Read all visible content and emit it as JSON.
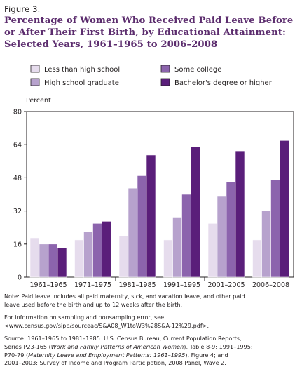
{
  "figure": {
    "label": "Figure 3.",
    "title_lines": [
      "Percentage of Women Who Received Paid Leave Before",
      "or After Their First Birth, by Educational Attainment:",
      "Selected Years, 1961–1965 to 2006–2008"
    ]
  },
  "chart_data": {
    "type": "bar",
    "ylabel": "Percent",
    "ylim": [
      0,
      80
    ],
    "yticks": [
      0,
      16,
      32,
      48,
      64,
      80
    ],
    "grid": false,
    "legend_placement": "top",
    "categories": [
      "1961–1965",
      "1971–1975",
      "1981–1985",
      "1991–1995",
      "2001–2005",
      "2006–2008"
    ],
    "series": [
      {
        "name": "Less than high school",
        "color": "#e6dced",
        "values": [
          19,
          18,
          20,
          18,
          26,
          18
        ]
      },
      {
        "name": "High school graduate",
        "color": "#b7a2cd",
        "values": [
          16,
          22,
          43,
          29,
          39,
          32
        ]
      },
      {
        "name": "Some college",
        "color": "#8c64ad",
        "values": [
          16,
          26,
          49,
          40,
          46,
          47
        ]
      },
      {
        "name": "Bachelor's degree or higher",
        "color": "#5a1e7a",
        "values": [
          14,
          27,
          59,
          63,
          61,
          66
        ]
      }
    ]
  },
  "notes": {
    "note_lines": [
      "Note: Paid leave includes all paid maternity, sick, and vacation leave, and other paid",
      "leave used before the birth and up to 12 weeks after the birth."
    ],
    "info_lines": [
      "For information on sampling and nonsampling error, see",
      "<www.census.gov/sipp/sourceac/S&A08_W1toW3%28S&A-12%29.pdf>."
    ],
    "source": {
      "l1": "Source: 1961–1965 to 1981–1985: U.S. Census Bureau, Current Population Reports,",
      "l2a": "Series P23-165 (",
      "l2b": "Work and Family Patterns of American Women",
      "l2c": "), Table 8-9; 1991–1995:",
      "l3a": "P70-79 (",
      "l3b": "Maternity Leave and Employment Patterns: 1961–1995",
      "l3c": "), Figure 4; and",
      "l4": "2001–2003: Survey of Income and Program Participation, 2008 Panel, Wave 2."
    }
  }
}
